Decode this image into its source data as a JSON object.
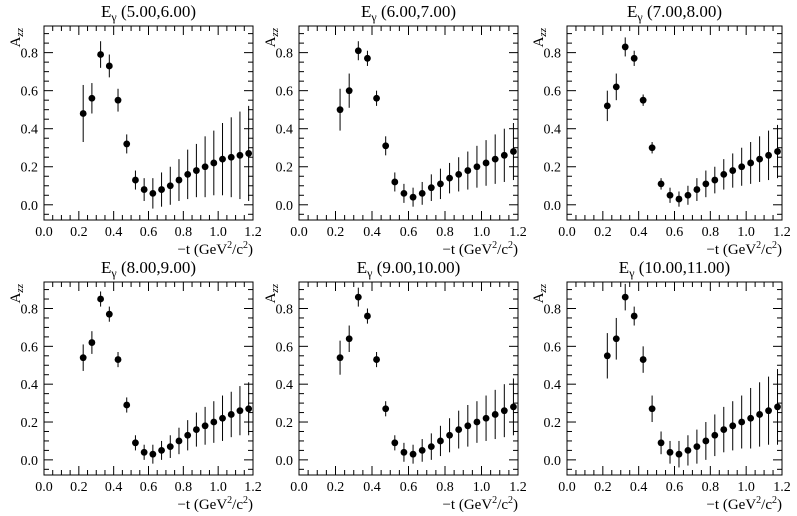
{
  "figure": {
    "shared": {
      "type": "scatter",
      "ylabel_main": "A",
      "ylabel_sub": "zz",
      "xlabel_pre": "−t  (GeV",
      "xlabel_sup1": "2",
      "xlabel_mid": "/c",
      "xlabel_sup2": "2",
      "xlabel_post": ")",
      "title_prefix": "E",
      "title_sub": "γ",
      "xlim": [
        0.0,
        1.2
      ],
      "xticks": [
        "0.0",
        "0.2",
        "0.4",
        "0.6",
        "0.8",
        "1.0",
        "1.2"
      ],
      "yticks": [
        "0.0",
        "0.2",
        "0.4",
        "0.6",
        "0.8"
      ],
      "grid": false,
      "marker_color": "#000000"
    }
  },
  "chart_data": [
    {
      "type": "scatter",
      "title_range": "(5.00,6.00)",
      "ylim": [
        -0.08,
        0.94
      ],
      "x": [
        0.225,
        0.275,
        0.325,
        0.375,
        0.425,
        0.475,
        0.525,
        0.575,
        0.625,
        0.675,
        0.725,
        0.775,
        0.825,
        0.875,
        0.925,
        0.975,
        1.025,
        1.075,
        1.125,
        1.175
      ],
      "y": [
        0.48,
        0.56,
        0.79,
        0.73,
        0.55,
        0.32,
        0.13,
        0.08,
        0.06,
        0.08,
        0.1,
        0.13,
        0.16,
        0.18,
        0.2,
        0.22,
        0.24,
        0.25,
        0.26,
        0.27
      ],
      "yerr": [
        0.15,
        0.08,
        0.07,
        0.06,
        0.06,
        0.05,
        0.05,
        0.06,
        0.08,
        0.09,
        0.1,
        0.11,
        0.13,
        0.14,
        0.16,
        0.17,
        0.19,
        0.21,
        0.23,
        0.25
      ]
    },
    {
      "type": "scatter",
      "title_range": "(6.00,7.00)",
      "ylim": [
        -0.08,
        0.94
      ],
      "x": [
        0.225,
        0.275,
        0.325,
        0.375,
        0.425,
        0.475,
        0.525,
        0.575,
        0.625,
        0.675,
        0.725,
        0.775,
        0.825,
        0.875,
        0.925,
        0.975,
        1.025,
        1.075,
        1.125,
        1.175
      ],
      "y": [
        0.5,
        0.6,
        0.81,
        0.77,
        0.56,
        0.31,
        0.12,
        0.06,
        0.04,
        0.06,
        0.09,
        0.11,
        0.14,
        0.16,
        0.18,
        0.2,
        0.22,
        0.24,
        0.26,
        0.28
      ],
      "yerr": [
        0.11,
        0.09,
        0.05,
        0.04,
        0.04,
        0.05,
        0.05,
        0.05,
        0.05,
        0.06,
        0.07,
        0.08,
        0.08,
        0.09,
        0.1,
        0.11,
        0.12,
        0.13,
        0.14,
        0.15
      ]
    },
    {
      "type": "scatter",
      "title_range": "(7.00,8.00)",
      "ylim": [
        -0.08,
        0.94
      ],
      "x": [
        0.225,
        0.275,
        0.325,
        0.375,
        0.425,
        0.475,
        0.525,
        0.575,
        0.625,
        0.675,
        0.725,
        0.775,
        0.825,
        0.875,
        0.925,
        0.975,
        1.025,
        1.075,
        1.125,
        1.175
      ],
      "y": [
        0.52,
        0.62,
        0.83,
        0.77,
        0.55,
        0.3,
        0.11,
        0.05,
        0.03,
        0.05,
        0.08,
        0.11,
        0.13,
        0.16,
        0.18,
        0.2,
        0.22,
        0.24,
        0.26,
        0.28
      ],
      "yerr": [
        0.08,
        0.07,
        0.05,
        0.04,
        0.03,
        0.03,
        0.03,
        0.04,
        0.04,
        0.05,
        0.06,
        0.07,
        0.07,
        0.08,
        0.09,
        0.1,
        0.11,
        0.12,
        0.13,
        0.14
      ]
    },
    {
      "type": "scatter",
      "title_range": "(8.00,9.00)",
      "ylim": [
        -0.08,
        0.94
      ],
      "x": [
        0.225,
        0.275,
        0.325,
        0.375,
        0.425,
        0.475,
        0.525,
        0.575,
        0.625,
        0.675,
        0.725,
        0.775,
        0.825,
        0.875,
        0.925,
        0.975,
        1.025,
        1.075,
        1.125,
        1.175
      ],
      "y": [
        0.54,
        0.62,
        0.85,
        0.77,
        0.53,
        0.29,
        0.09,
        0.04,
        0.03,
        0.05,
        0.07,
        0.1,
        0.13,
        0.16,
        0.18,
        0.2,
        0.22,
        0.24,
        0.26,
        0.27
      ],
      "yerr": [
        0.07,
        0.06,
        0.04,
        0.04,
        0.04,
        0.04,
        0.04,
        0.04,
        0.05,
        0.05,
        0.06,
        0.07,
        0.08,
        0.09,
        0.1,
        0.11,
        0.12,
        0.12,
        0.13,
        0.14
      ]
    },
    {
      "type": "scatter",
      "title_range": "(9.00,10.00)",
      "ylim": [
        -0.08,
        0.94
      ],
      "x": [
        0.225,
        0.275,
        0.325,
        0.375,
        0.425,
        0.475,
        0.525,
        0.575,
        0.625,
        0.675,
        0.725,
        0.775,
        0.825,
        0.875,
        0.925,
        0.975,
        1.025,
        1.075,
        1.125,
        1.175
      ],
      "y": [
        0.54,
        0.64,
        0.86,
        0.76,
        0.53,
        0.27,
        0.09,
        0.04,
        0.03,
        0.05,
        0.07,
        0.1,
        0.13,
        0.16,
        0.18,
        0.2,
        0.22,
        0.24,
        0.26,
        0.28
      ],
      "yerr": [
        0.09,
        0.07,
        0.05,
        0.04,
        0.04,
        0.04,
        0.04,
        0.05,
        0.05,
        0.06,
        0.07,
        0.08,
        0.09,
        0.1,
        0.11,
        0.11,
        0.12,
        0.13,
        0.14,
        0.15
      ]
    },
    {
      "type": "scatter",
      "title_range": "(10.00,11.00)",
      "ylim": [
        -0.08,
        0.94
      ],
      "x": [
        0.225,
        0.275,
        0.325,
        0.375,
        0.425,
        0.475,
        0.525,
        0.575,
        0.625,
        0.675,
        0.725,
        0.775,
        0.825,
        0.875,
        0.925,
        0.975,
        1.025,
        1.075,
        1.125,
        1.175
      ],
      "y": [
        0.55,
        0.64,
        0.86,
        0.76,
        0.53,
        0.27,
        0.09,
        0.04,
        0.03,
        0.05,
        0.07,
        0.1,
        0.13,
        0.16,
        0.18,
        0.2,
        0.22,
        0.24,
        0.26,
        0.28
      ],
      "yerr": [
        0.12,
        0.11,
        0.07,
        0.05,
        0.07,
        0.07,
        0.06,
        0.06,
        0.07,
        0.08,
        0.09,
        0.1,
        0.11,
        0.12,
        0.13,
        0.14,
        0.16,
        0.17,
        0.18,
        0.2
      ]
    }
  ]
}
